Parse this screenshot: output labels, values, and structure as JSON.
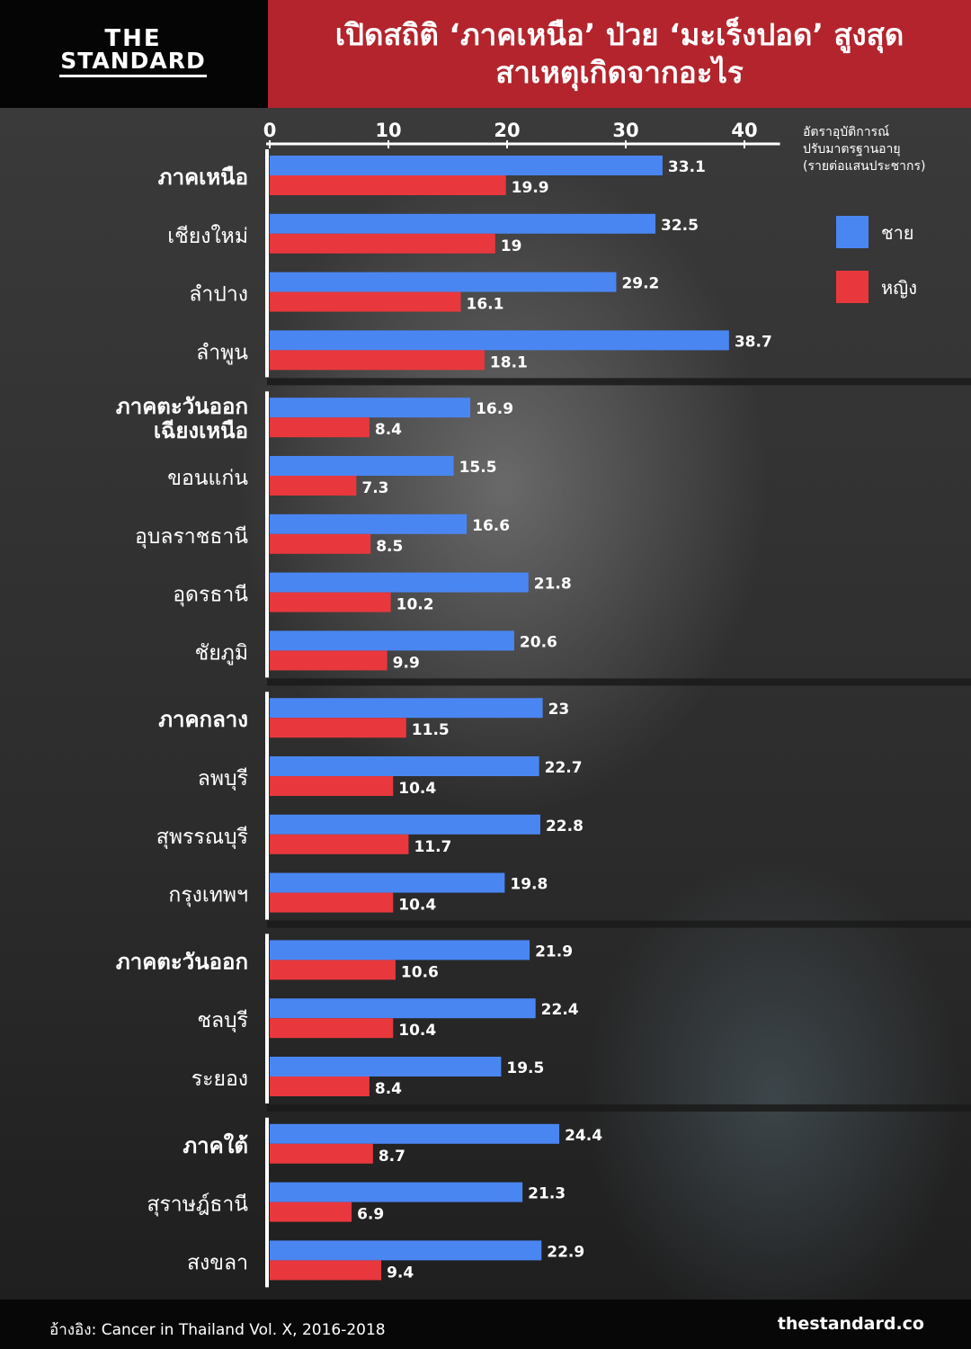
{
  "header": {
    "logo_line1": "THE",
    "logo_line2": "STANDARD",
    "title_line1": "เปิดสถิติ ‘ภาคเหนือ’ ป่วย ‘มะเร็งปอด’ สูงสุด",
    "title_line2": "สาเหตุเกิดจากอะไร"
  },
  "footer": {
    "source": "อ้างอิง: Cancer in Thailand Vol. X, 2016-2018",
    "site": "thestandard.co"
  },
  "colors": {
    "male": "#4a86f2",
    "female": "#e8383d",
    "header_red": "#b3242c"
  },
  "chart_data": {
    "type": "bar",
    "orientation": "horizontal",
    "axis_label": [
      "อัตราอุบัติการณ์",
      "ปรับมาตรฐานอายุ",
      "(รายต่อแสนประชากร)"
    ],
    "xlim": [
      0,
      43
    ],
    "ticks": [
      0,
      10,
      20,
      30,
      40
    ],
    "legend_position": "right",
    "series": [
      {
        "name": "ชาย",
        "color": "#4a86f2"
      },
      {
        "name": "หญิง",
        "color": "#e8383d"
      }
    ],
    "groups": [
      {
        "items": [
          {
            "label": "ภาคเหนือ",
            "region": true,
            "male": 33.1,
            "female": 19.9
          },
          {
            "label": "เชียงใหม่",
            "region": false,
            "male": 32.5,
            "female": 19
          },
          {
            "label": "ลำปาง",
            "region": false,
            "male": 29.2,
            "female": 16.1
          },
          {
            "label": "ลำพูน",
            "region": false,
            "male": 38.7,
            "female": 18.1
          }
        ]
      },
      {
        "items": [
          {
            "label": "ภาคตะวันออก\nเฉียงเหนือ",
            "region": true,
            "male": 16.9,
            "female": 8.4
          },
          {
            "label": "ขอนแก่น",
            "region": false,
            "male": 15.5,
            "female": 7.3
          },
          {
            "label": "อุบลราชธานี",
            "region": false,
            "male": 16.6,
            "female": 8.5
          },
          {
            "label": "อุดรธานี",
            "region": false,
            "male": 21.8,
            "female": 10.2
          },
          {
            "label": "ชัยภูมิ",
            "region": false,
            "male": 20.6,
            "female": 9.9
          }
        ]
      },
      {
        "items": [
          {
            "label": "ภาคกลาง",
            "region": true,
            "male": 23,
            "female": 11.5
          },
          {
            "label": "ลพบุรี",
            "region": false,
            "male": 22.7,
            "female": 10.4
          },
          {
            "label": "สุพรรณบุรี",
            "region": false,
            "male": 22.8,
            "female": 11.7
          },
          {
            "label": "กรุงเทพฯ",
            "region": false,
            "male": 19.8,
            "female": 10.4
          }
        ]
      },
      {
        "items": [
          {
            "label": "ภาคตะวันออก",
            "region": true,
            "male": 21.9,
            "female": 10.6
          },
          {
            "label": "ชลบุรี",
            "region": false,
            "male": 22.4,
            "female": 10.4
          },
          {
            "label": "ระยอง",
            "region": false,
            "male": 19.5,
            "female": 8.4
          }
        ]
      },
      {
        "items": [
          {
            "label": "ภาคใต้",
            "region": true,
            "male": 24.4,
            "female": 8.7
          },
          {
            "label": "สุราษฎ์ธานี",
            "region": false,
            "male": 21.3,
            "female": 6.9
          },
          {
            "label": "สงขลา",
            "region": false,
            "male": 22.9,
            "female": 9.4
          }
        ]
      }
    ]
  }
}
